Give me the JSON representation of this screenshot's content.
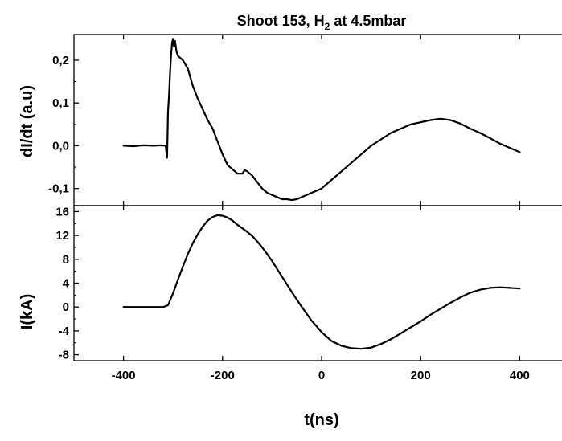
{
  "chart_data": [
    {
      "type": "line",
      "title_main": "Shoot 153, H",
      "title_sub": "2",
      "title_rest": " at 4.5mbar",
      "ylabel": "dI/dt (a.u)",
      "xlim": [
        -500,
        500
      ],
      "ylim": [
        -0.14,
        0.26
      ],
      "yticks": [
        -0.1,
        0.0,
        0.1,
        0.2
      ],
      "ytick_labels": [
        "-0,1",
        "0,0",
        "0,1",
        "0,2"
      ],
      "series": [
        {
          "x": [
            -400,
            -380,
            -360,
            -340,
            -325,
            -315,
            -312,
            -310,
            -308,
            -306,
            -304,
            -302,
            -300,
            -298,
            -296,
            -293,
            -290,
            -285,
            -280,
            -270,
            -260,
            -250,
            -240,
            -230,
            -220,
            -210,
            -200,
            -190,
            -180,
            -170,
            -160,
            -155,
            -150,
            -140,
            -130,
            -120,
            -110,
            -100,
            -90,
            -80,
            -70,
            -60,
            -50,
            -40,
            -30,
            -20,
            -10,
            0,
            20,
            40,
            60,
            80,
            100,
            120,
            140,
            160,
            180,
            200,
            220,
            240,
            260,
            280,
            300,
            320,
            340,
            360,
            380,
            400
          ],
          "y": [
            0.0,
            -0.001,
            0.001,
            0.0,
            0.001,
            0.0,
            -0.028,
            0.08,
            0.12,
            0.17,
            0.21,
            0.24,
            0.25,
            0.232,
            0.245,
            0.22,
            0.21,
            0.205,
            0.2,
            0.18,
            0.14,
            0.11,
            0.085,
            0.06,
            0.04,
            0.01,
            -0.02,
            -0.045,
            -0.055,
            -0.065,
            -0.065,
            -0.057,
            -0.06,
            -0.07,
            -0.085,
            -0.1,
            -0.11,
            -0.115,
            -0.12,
            -0.125,
            -0.125,
            -0.127,
            -0.125,
            -0.12,
            -0.115,
            -0.11,
            -0.105,
            -0.1,
            -0.08,
            -0.06,
            -0.04,
            -0.02,
            0.0,
            0.015,
            0.03,
            0.04,
            0.05,
            0.055,
            0.06,
            0.063,
            0.06,
            0.052,
            0.04,
            0.03,
            0.018,
            0.005,
            -0.005,
            -0.015
          ]
        }
      ]
    },
    {
      "type": "line",
      "xlabel": "t(ns)",
      "ylabel": "I(kA)",
      "xlim": [
        -500,
        500
      ],
      "ylim": [
        -9,
        17
      ],
      "xticks": [
        -400,
        -200,
        0,
        200,
        400
      ],
      "xtick_labels": [
        "-400",
        "-200",
        "0",
        "200",
        "400"
      ],
      "yticks": [
        -8,
        -4,
        0,
        4,
        8,
        12,
        16
      ],
      "ytick_labels": [
        "-8",
        "-4",
        "0",
        "4",
        "8",
        "12",
        "16"
      ],
      "series": [
        {
          "x": [
            -400,
            -360,
            -320,
            -310,
            -300,
            -290,
            -280,
            -270,
            -260,
            -250,
            -240,
            -230,
            -220,
            -210,
            -200,
            -190,
            -180,
            -170,
            -160,
            -150,
            -140,
            -130,
            -120,
            -110,
            -100,
            -80,
            -60,
            -40,
            -20,
            0,
            20,
            40,
            60,
            80,
            100,
            120,
            140,
            160,
            180,
            200,
            220,
            240,
            260,
            280,
            300,
            320,
            340,
            360,
            380,
            400
          ],
          "y": [
            0.0,
            0.0,
            0.0,
            0.3,
            2.3,
            4.6,
            6.8,
            8.9,
            10.7,
            12.2,
            13.5,
            14.5,
            15.1,
            15.4,
            15.3,
            15.0,
            14.5,
            13.8,
            13.2,
            12.6,
            11.9,
            11.0,
            10.0,
            8.9,
            7.7,
            5.1,
            2.5,
            0.0,
            -2.3,
            -4.2,
            -5.7,
            -6.5,
            -6.9,
            -7.0,
            -6.8,
            -6.2,
            -5.4,
            -4.4,
            -3.4,
            -2.4,
            -1.3,
            -0.3,
            0.7,
            1.6,
            2.4,
            2.9,
            3.2,
            3.3,
            3.2,
            3.1
          ]
        }
      ]
    }
  ]
}
